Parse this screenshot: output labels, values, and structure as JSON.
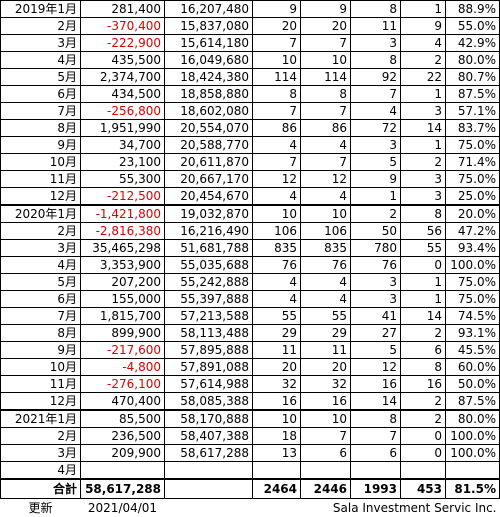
{
  "table": {
    "rows": [
      [
        "2019年1月",
        "281,400",
        "16,207,480",
        "9",
        "9",
        "8",
        "1",
        "88.9%"
      ],
      [
        "2月",
        "-370,400",
        "15,837,080",
        "20",
        "20",
        "11",
        "9",
        "55.0%"
      ],
      [
        "3月",
        "-222,900",
        "15,614,180",
        "7",
        "7",
        "3",
        "4",
        "42.9%"
      ],
      [
        "4月",
        "435,500",
        "16,049,680",
        "10",
        "10",
        "8",
        "2",
        "80.0%"
      ],
      [
        "5月",
        "2,374,700",
        "18,424,380",
        "114",
        "114",
        "92",
        "22",
        "80.7%"
      ],
      [
        "6月",
        "434,500",
        "18,858,880",
        "8",
        "8",
        "7",
        "1",
        "87.5%"
      ],
      [
        "7月",
        "-256,800",
        "18,602,080",
        "7",
        "7",
        "4",
        "3",
        "57.1%"
      ],
      [
        "8月",
        "1,951,990",
        "20,554,070",
        "86",
        "86",
        "72",
        "14",
        "83.7%"
      ],
      [
        "9月",
        "34,700",
        "20,588,770",
        "4",
        "4",
        "3",
        "1",
        "75.0%"
      ],
      [
        "10月",
        "23,100",
        "20,611,870",
        "7",
        "7",
        "5",
        "2",
        "71.4%"
      ],
      [
        "11月",
        "55,300",
        "20,667,170",
        "12",
        "12",
        "9",
        "3",
        "75.0%"
      ],
      [
        "12月",
        "-212,500",
        "20,454,670",
        "4",
        "4",
        "1",
        "3",
        "25.0%"
      ],
      [
        "2020年1月",
        "-1,421,800",
        "19,032,870",
        "10",
        "10",
        "2",
        "8",
        "20.0%"
      ],
      [
        "2月",
        "-2,816,380",
        "16,216,490",
        "106",
        "106",
        "50",
        "56",
        "47.2%"
      ],
      [
        "3月",
        "35,465,298",
        "51,681,788",
        "835",
        "835",
        "780",
        "55",
        "93.4%"
      ],
      [
        "4月",
        "3,353,900",
        "55,035,688",
        "76",
        "76",
        "76",
        "0",
        "100.0%"
      ],
      [
        "5月",
        "207,200",
        "55,242,888",
        "4",
        "4",
        "3",
        "1",
        "75.0%"
      ],
      [
        "6月",
        "155,000",
        "55,397,888",
        "4",
        "4",
        "3",
        "1",
        "75.0%"
      ],
      [
        "7月",
        "1,815,700",
        "57,213,588",
        "55",
        "55",
        "41",
        "14",
        "74.5%"
      ],
      [
        "8月",
        "899,900",
        "58,113,488",
        "29",
        "29",
        "27",
        "2",
        "93.1%"
      ],
      [
        "9月",
        "-217,600",
        "57,895,888",
        "11",
        "11",
        "5",
        "6",
        "45.5%"
      ],
      [
        "10月",
        "-4,800",
        "57,891,088",
        "20",
        "20",
        "12",
        "8",
        "60.0%"
      ],
      [
        "11月",
        "-276,100",
        "57,614,988",
        "32",
        "32",
        "16",
        "16",
        "50.0%"
      ],
      [
        "12月",
        "470,400",
        "58,085,388",
        "16",
        "16",
        "14",
        "2",
        "87.5%"
      ],
      [
        "2021年1月",
        "85,500",
        "58,170,888",
        "10",
        "10",
        "8",
        "2",
        "80.0%"
      ],
      [
        "2月",
        "236,500",
        "58,407,388",
        "18",
        "7",
        "7",
        "0",
        "100.0%"
      ],
      [
        "3月",
        "209,900",
        "58,617,288",
        "13",
        "6",
        "6",
        "0",
        "100.0%"
      ],
      [
        "4月"
      ]
    ],
    "total": [
      "合計",
      "58,617,288",
      null,
      "2464",
      "2446",
      "1993",
      "453",
      "81.5%"
    ],
    "footer": {
      "label": "更新",
      "date": "2021/04/01",
      "company": "Sala Investment Servic Inc."
    }
  }
}
